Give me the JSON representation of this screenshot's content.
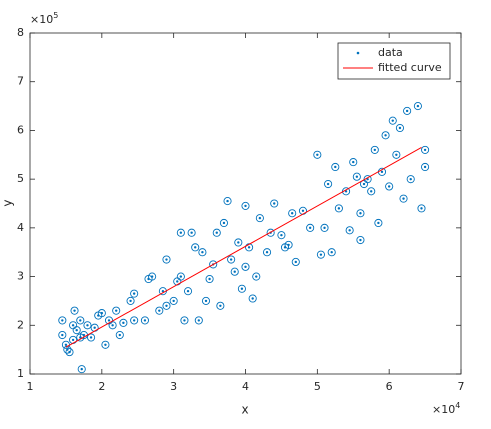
{
  "chart_data": {
    "type": "scatter",
    "xlabel": "x",
    "ylabel": "y",
    "x_multiplier_base": "×10",
    "x_multiplier_exponent": "4",
    "y_multiplier_base": "×10",
    "y_multiplier_exponent": "5",
    "xlim": [
      1,
      7
    ],
    "ylim": [
      1,
      8
    ],
    "xticks": [
      1,
      2,
      3,
      4,
      5,
      6,
      7
    ],
    "yticks": [
      1,
      2,
      3,
      4,
      5,
      6,
      7,
      8
    ],
    "legend": "upper right",
    "series": [
      {
        "name": "data",
        "color": "#0072bd",
        "x": [
          1.45,
          1.45,
          1.5,
          1.52,
          1.55,
          1.6,
          1.6,
          1.62,
          1.65,
          1.7,
          1.7,
          1.72,
          1.75,
          1.8,
          1.85,
          1.9,
          1.95,
          2.0,
          2.05,
          2.1,
          2.15,
          2.2,
          2.25,
          2.3,
          2.4,
          2.45,
          2.45,
          2.6,
          2.65,
          2.7,
          2.8,
          2.85,
          2.9,
          2.9,
          3.0,
          3.05,
          3.1,
          3.1,
          3.15,
          3.2,
          3.25,
          3.3,
          3.35,
          3.4,
          3.45,
          3.5,
          3.55,
          3.6,
          3.65,
          3.7,
          3.75,
          3.8,
          3.85,
          3.9,
          3.95,
          4.0,
          4.0,
          4.05,
          4.1,
          4.15,
          4.2,
          4.3,
          4.35,
          4.4,
          4.5,
          4.55,
          4.6,
          4.65,
          4.7,
          4.8,
          4.9,
          5.0,
          5.05,
          5.1,
          5.15,
          5.2,
          5.25,
          5.3,
          5.4,
          5.45,
          5.5,
          5.55,
          5.6,
          5.6,
          5.65,
          5.7,
          5.75,
          5.8,
          5.85,
          5.9,
          5.95,
          6.0,
          6.05,
          6.1,
          6.15,
          6.2,
          6.25,
          6.3,
          6.4,
          6.45,
          6.5,
          6.5
        ],
        "values": [
          2.1,
          1.8,
          1.6,
          1.5,
          1.45,
          1.7,
          2.0,
          2.3,
          1.9,
          1.75,
          2.1,
          1.1,
          1.8,
          2.0,
          1.75,
          1.95,
          2.2,
          2.25,
          1.6,
          2.1,
          2.0,
          2.3,
          1.8,
          2.05,
          2.5,
          2.65,
          2.1,
          2.1,
          2.95,
          3.0,
          2.3,
          2.7,
          3.35,
          2.4,
          2.5,
          2.9,
          3.0,
          3.9,
          2.1,
          2.7,
          3.9,
          3.6,
          2.1,
          3.5,
          2.5,
          2.95,
          3.25,
          3.9,
          2.4,
          4.1,
          4.55,
          3.35,
          3.1,
          3.7,
          2.75,
          3.2,
          4.45,
          3.6,
          2.55,
          3.0,
          4.2,
          3.5,
          3.9,
          4.5,
          3.85,
          3.6,
          3.65,
          4.3,
          3.3,
          4.35,
          4.0,
          5.5,
          3.45,
          4.0,
          4.9,
          3.5,
          5.25,
          4.4,
          4.75,
          3.95,
          5.35,
          5.05,
          4.3,
          3.75,
          4.9,
          5.0,
          4.75,
          5.6,
          4.1,
          5.15,
          5.9,
          4.85,
          6.2,
          5.5,
          6.05,
          4.6,
          6.4,
          5.0,
          6.5,
          4.4,
          5.6,
          5.25
        ]
      },
      {
        "name": "fitted curve",
        "color": "#ff0000",
        "x": [
          1.5,
          6.45
        ],
        "values": [
          1.55,
          5.65
        ]
      }
    ]
  }
}
